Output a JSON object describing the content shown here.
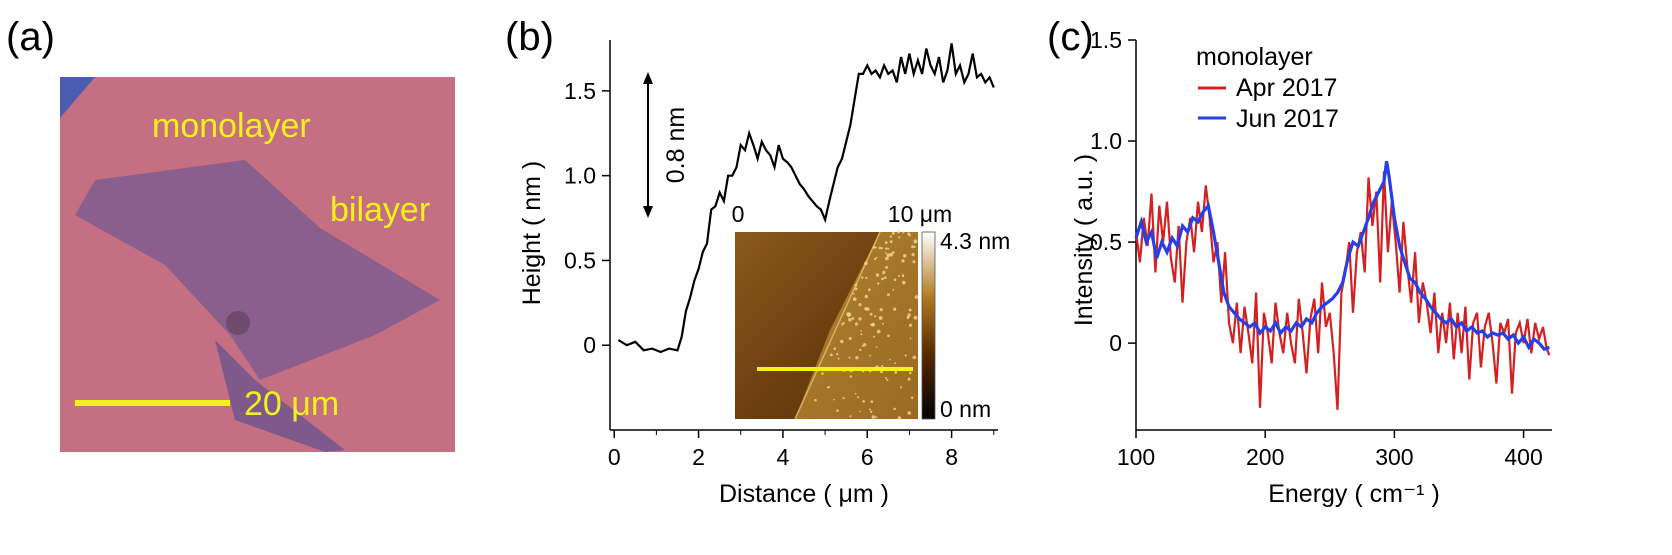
{
  "panels": {
    "a": {
      "label": "(a)",
      "monolayer_label": "monolayer",
      "bilayer_label": "bilayer",
      "scalebar_label": "20 μm"
    },
    "b": {
      "label": "(b)",
      "step_label": "0.8 nm",
      "inset": {
        "x_start_label": "0",
        "x_end_label": "10 μm",
        "colorbar_max": "4.3 nm",
        "colorbar_min": "0 nm"
      }
    },
    "c": {
      "label": "(c)"
    }
  },
  "colors": {
    "photo_bg": "#c46f82",
    "yellow": "#f2f21a",
    "apr": "#d42020",
    "jun": "#2540e6"
  },
  "chart_data": [
    {
      "id": "b",
      "type": "line",
      "title": "",
      "xlabel": "Distance ( μm )",
      "ylabel": "Height ( nm )",
      "xlim": [
        -0.1,
        9.1
      ],
      "ylim": [
        -0.5,
        1.8
      ],
      "xticks": [
        0,
        2,
        4,
        6,
        8
      ],
      "xtick_labels": [
        "0",
        "2",
        "4",
        "6",
        "8"
      ],
      "yticks": [
        0,
        0.5,
        1.0,
        1.5
      ],
      "ytick_labels": [
        "0",
        "0.5",
        "1.0",
        "1.5"
      ],
      "series": [
        {
          "name": "height profile",
          "x": [
            0.1,
            0.3,
            0.5,
            0.7,
            0.9,
            1.1,
            1.3,
            1.5,
            1.6,
            1.7,
            1.8,
            1.9,
            2.0,
            2.1,
            2.2,
            2.3,
            2.4,
            2.5,
            2.6,
            2.7,
            2.8,
            2.9,
            3.0,
            3.1,
            3.2,
            3.3,
            3.4,
            3.5,
            3.6,
            3.7,
            3.8,
            3.9,
            4.0,
            4.1,
            4.2,
            4.3,
            4.4,
            4.5,
            4.6,
            4.7,
            4.8,
            4.9,
            5.0,
            5.1,
            5.2,
            5.3,
            5.4,
            5.5,
            5.6,
            5.7,
            5.8,
            5.9,
            6.0,
            6.1,
            6.2,
            6.3,
            6.4,
            6.5,
            6.6,
            6.7,
            6.8,
            6.9,
            7.0,
            7.1,
            7.2,
            7.3,
            7.4,
            7.5,
            7.6,
            7.7,
            7.8,
            7.9,
            8.0,
            8.1,
            8.2,
            8.3,
            8.4,
            8.5,
            8.6,
            8.7,
            8.8,
            8.9,
            9.0
          ],
          "y": [
            0.03,
            0.0,
            0.02,
            -0.03,
            -0.02,
            -0.04,
            -0.02,
            -0.03,
            0.05,
            0.2,
            0.28,
            0.38,
            0.45,
            0.55,
            0.6,
            0.8,
            0.82,
            0.9,
            0.85,
            1.0,
            1.0,
            1.05,
            1.18,
            1.15,
            1.25,
            1.18,
            1.1,
            1.2,
            1.15,
            1.12,
            1.05,
            1.18,
            1.1,
            1.08,
            1.05,
            1.0,
            0.95,
            0.92,
            0.88,
            0.85,
            0.82,
            0.8,
            0.74,
            0.85,
            0.95,
            1.05,
            1.1,
            1.2,
            1.3,
            1.45,
            1.6,
            1.6,
            1.65,
            1.6,
            1.62,
            1.58,
            1.65,
            1.6,
            1.62,
            1.55,
            1.7,
            1.6,
            1.72,
            1.6,
            1.68,
            1.6,
            1.75,
            1.65,
            1.6,
            1.7,
            1.55,
            1.62,
            1.78,
            1.6,
            1.65,
            1.55,
            1.6,
            1.72,
            1.58,
            1.6,
            1.55,
            1.58,
            1.52
          ]
        }
      ]
    },
    {
      "id": "c",
      "type": "line",
      "title": "",
      "xlabel": "Energy ( cm⁻¹ )",
      "ylabel": "Intensity ( a.u. )",
      "xlim": [
        100,
        422
      ],
      "ylim": [
        -0.43,
        1.5
      ],
      "xticks": [
        100,
        200,
        300,
        400
      ],
      "xtick_labels": [
        "100",
        "200",
        "300",
        "400"
      ],
      "yticks": [
        0,
        0.5,
        1.0,
        1.5
      ],
      "ytick_labels": [
        "0",
        "0.5",
        "1.0",
        "1.5"
      ],
      "legend": {
        "title": "monolayer",
        "position": "top-left"
      },
      "series": [
        {
          "name": "Apr 2017",
          "color": "#d42020",
          "x": [
            100,
            103,
            106,
            109,
            112,
            115,
            118,
            121,
            124,
            127,
            130,
            133,
            136,
            139,
            142,
            145,
            148,
            151,
            154,
            157,
            160,
            163,
            166,
            169,
            172,
            175,
            178,
            181,
            184,
            187,
            190,
            193,
            196,
            199,
            202,
            205,
            208,
            211,
            214,
            217,
            220,
            223,
            226,
            229,
            232,
            235,
            238,
            241,
            244,
            247,
            250,
            253,
            256,
            259,
            262,
            265,
            268,
            271,
            274,
            277,
            280,
            283,
            286,
            289,
            292,
            295,
            298,
            301,
            304,
            307,
            310,
            313,
            316,
            319,
            322,
            325,
            328,
            331,
            334,
            337,
            340,
            343,
            346,
            349,
            352,
            355,
            358,
            361,
            364,
            367,
            370,
            373,
            376,
            379,
            382,
            385,
            388,
            391,
            394,
            397,
            400,
            403,
            406,
            409,
            412,
            415,
            418,
            420
          ],
          "y": [
            0.55,
            0.4,
            0.62,
            0.48,
            0.74,
            0.35,
            0.68,
            0.5,
            0.7,
            0.42,
            0.3,
            0.58,
            0.2,
            0.5,
            0.62,
            0.45,
            0.7,
            0.55,
            0.78,
            0.62,
            0.4,
            0.5,
            0.2,
            0.45,
            0.1,
            0.0,
            0.2,
            -0.05,
            0.18,
            0.05,
            -0.1,
            0.25,
            -0.32,
            0.15,
            0.05,
            -0.1,
            0.2,
            0.05,
            -0.05,
            0.15,
            0.0,
            -0.1,
            0.22,
            0.05,
            -0.15,
            0.12,
            0.22,
            -0.05,
            0.3,
            0.08,
            0.15,
            -0.05,
            -0.33,
            0.25,
            0.35,
            0.5,
            0.15,
            0.45,
            0.55,
            0.35,
            0.82,
            0.58,
            0.75,
            0.3,
            0.85,
            0.45,
            0.7,
            0.5,
            0.25,
            0.6,
            0.38,
            0.2,
            0.45,
            0.1,
            0.3,
            0.2,
            0.05,
            0.25,
            -0.05,
            0.15,
            0.0,
            0.2,
            -0.08,
            0.15,
            -0.05,
            0.18,
            -0.18,
            0.1,
            0.15,
            -0.12,
            0.08,
            0.15,
            0.0,
            -0.2,
            0.1,
            0.05,
            0.12,
            -0.25,
            0.05,
            0.1,
            0.0,
            0.12,
            -0.05,
            0.1,
            0.02,
            0.08,
            -0.03,
            -0.06
          ]
        },
        {
          "name": "Jun 2017",
          "color": "#2540e6",
          "x": [
            100,
            104,
            108,
            112,
            116,
            120,
            124,
            128,
            132,
            136,
            140,
            144,
            148,
            152,
            156,
            160,
            164,
            168,
            172,
            176,
            180,
            184,
            188,
            192,
            196,
            200,
            204,
            208,
            212,
            216,
            220,
            224,
            228,
            232,
            236,
            240,
            244,
            248,
            252,
            256,
            260,
            264,
            268,
            272,
            276,
            280,
            284,
            288,
            292,
            294,
            296,
            300,
            304,
            308,
            312,
            316,
            320,
            324,
            328,
            332,
            336,
            340,
            344,
            348,
            352,
            356,
            360,
            364,
            368,
            372,
            376,
            380,
            384,
            388,
            392,
            396,
            400,
            404,
            408,
            412,
            416,
            420
          ],
          "y": [
            0.52,
            0.6,
            0.5,
            0.55,
            0.42,
            0.5,
            0.45,
            0.52,
            0.48,
            0.58,
            0.55,
            0.62,
            0.6,
            0.65,
            0.68,
            0.55,
            0.4,
            0.25,
            0.18,
            0.15,
            0.12,
            0.1,
            0.08,
            0.1,
            0.05,
            0.08,
            0.06,
            0.1,
            0.05,
            0.08,
            0.06,
            0.1,
            0.08,
            0.12,
            0.1,
            0.15,
            0.18,
            0.2,
            0.22,
            0.25,
            0.3,
            0.42,
            0.5,
            0.48,
            0.55,
            0.62,
            0.7,
            0.75,
            0.8,
            0.9,
            0.82,
            0.62,
            0.48,
            0.4,
            0.32,
            0.3,
            0.25,
            0.22,
            0.18,
            0.15,
            0.12,
            0.1,
            0.12,
            0.08,
            0.1,
            0.06,
            0.08,
            0.05,
            0.06,
            0.03,
            0.05,
            0.04,
            0.05,
            0.02,
            0.04,
            0.0,
            0.03,
            -0.02,
            0.02,
            0.0,
            -0.03,
            -0.02
          ]
        }
      ]
    }
  ]
}
